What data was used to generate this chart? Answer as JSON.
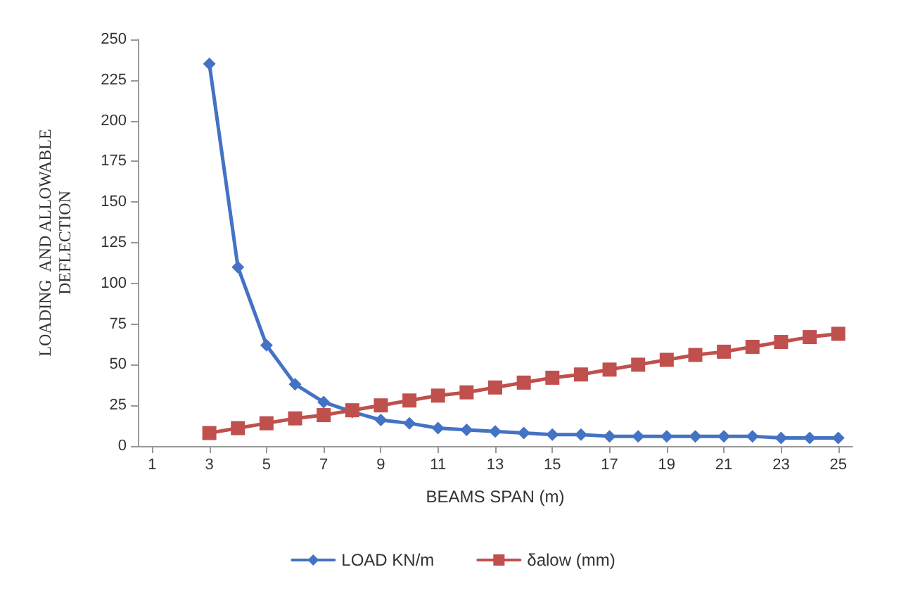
{
  "chart_data": {
    "type": "line",
    "xlabel": "BEAMS SPAN (m)",
    "ylabel": "LOADING  AND ALLOWABLE\nDEFLECTION",
    "x": [
      3,
      4,
      5,
      6,
      7,
      8,
      9,
      10,
      11,
      12,
      13,
      14,
      15,
      16,
      17,
      18,
      19,
      20,
      21,
      22,
      23,
      24,
      25
    ],
    "series": [
      {
        "name": "LOAD KN/m",
        "color": "#4472c4",
        "marker": "diamond",
        "values": [
          235,
          110,
          62,
          38,
          27,
          21,
          16,
          14,
          11,
          10,
          9,
          8,
          7,
          7,
          6,
          6,
          6,
          6,
          6,
          6,
          5,
          5,
          5
        ]
      },
      {
        "name": "δalow (mm)",
        "color": "#c0504d",
        "marker": "square",
        "values": [
          8,
          11,
          14,
          17,
          19,
          22,
          25,
          28,
          31,
          33,
          36,
          39,
          42,
          44,
          47,
          50,
          53,
          56,
          58,
          61,
          64,
          67,
          69
        ]
      }
    ],
    "xlim": [
      0.5,
      25.5
    ],
    "xticks": [
      1,
      3,
      5,
      7,
      9,
      11,
      13,
      15,
      17,
      19,
      21,
      23,
      25
    ],
    "ylim": [
      0,
      250
    ],
    "yticks": [
      0,
      25,
      50,
      75,
      100,
      125,
      150,
      175,
      200,
      225,
      250
    ],
    "grid": false,
    "legend": "bottom",
    "line_style": "solid"
  }
}
